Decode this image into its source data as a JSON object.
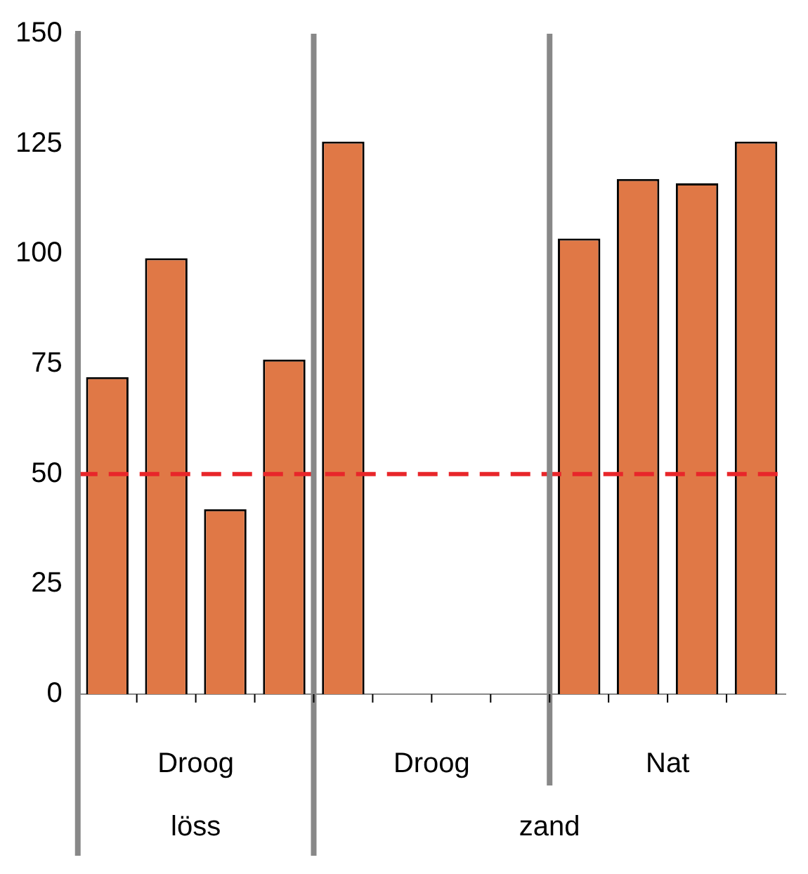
{
  "chart_data": {
    "type": "bar",
    "categories": [
      null,
      null,
      null,
      null,
      null,
      null,
      null,
      null,
      null,
      null,
      null,
      null
    ],
    "values": [
      72,
      99,
      42,
      76,
      125.5,
      null,
      null,
      null,
      103.5,
      117,
      116,
      125.5
    ],
    "color": "#e07846",
    "ylim": [
      0,
      150
    ],
    "yticks": [
      0,
      25,
      50,
      75,
      100,
      125,
      150
    ],
    "grid": false,
    "legend": false,
    "ref_lines": [
      {
        "axis": "y",
        "value": 50,
        "color": "#e8262a",
        "line_style": "dashed"
      }
    ],
    "annotations": [
      "Droog",
      "Droog",
      "Nat",
      "löss",
      "zand"
    ]
  }
}
